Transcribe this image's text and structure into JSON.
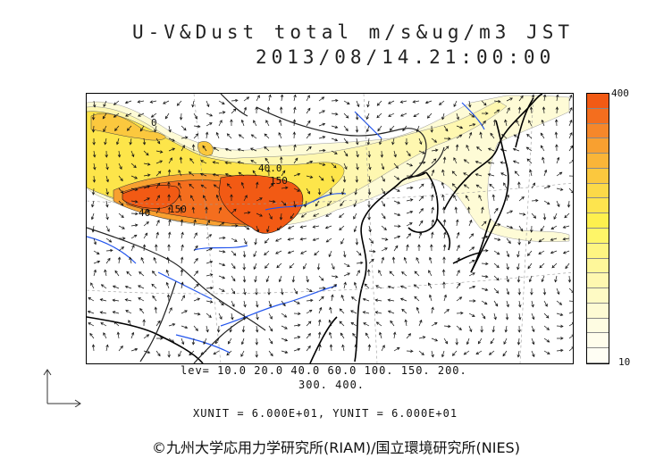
{
  "title": {
    "line1": "U-V&Dust total m/s&ug/m3 JST",
    "line2": "2013/08/14.21:00:00"
  },
  "legend": {
    "max_label": "400",
    "min_label": "10",
    "colors": [
      "#f25a14",
      "#f46e1e",
      "#f6872a",
      "#f8a030",
      "#fab538",
      "#fbc83e",
      "#fcd948",
      "#fde44e",
      "#fef04e",
      "#fef568",
      "#fef582",
      "#fef79a",
      "#fef8b0",
      "#fefac4",
      "#fefbd4",
      "#fefce2",
      "#fffdec",
      "#fffef4"
    ]
  },
  "levels": {
    "line1": "lev= 10.0 20.0 40.0 60.0 100. 150. 200.",
    "line2": "300. 400."
  },
  "units": "XUNIT = 6.000E+01, YUNIT = 6.000E+01",
  "contour_labels": [
    {
      "text": "40.0",
      "class": "a"
    },
    {
      "text": "150",
      "class": "b"
    },
    {
      "text": "40",
      "class": "c"
    },
    {
      "text": "150",
      "class": "d"
    },
    {
      "text": "0",
      "class": "e"
    }
  ],
  "credit": "©九州大学応用力学研究所(RIAM)/国立環境研究所(NIES)",
  "colors": {
    "heavy": "#f25a14",
    "mid": "#fbc83e",
    "light": "#fefabe",
    "coast": "#000000",
    "river": "#2255ee",
    "border": "#111111"
  }
}
